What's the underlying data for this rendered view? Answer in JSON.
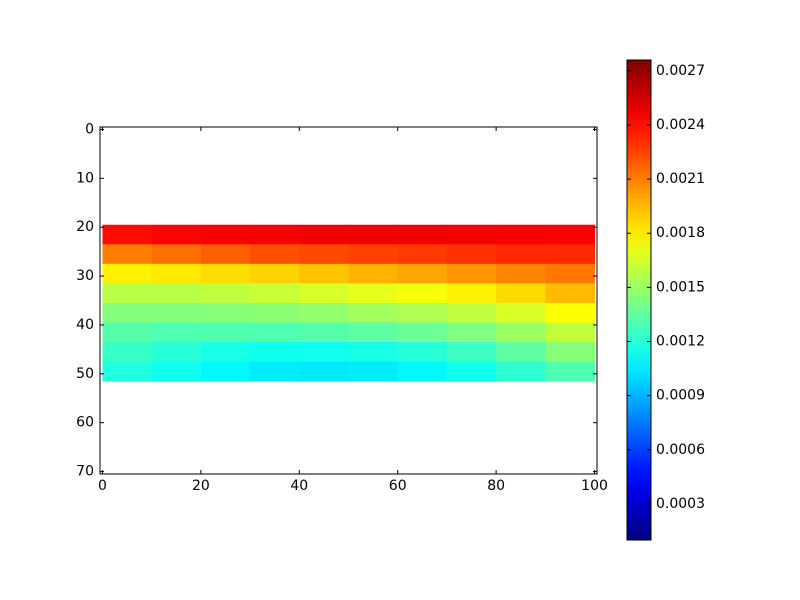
{
  "chart_data": {
    "type": "heatmap",
    "x": [
      5,
      15,
      25,
      35,
      45,
      55,
      65,
      75,
      85,
      95
    ],
    "y": [
      21.5,
      25.5,
      29.5,
      33.5,
      37.5,
      41.5,
      45.5,
      49.5
    ],
    "values": [
      [
        0.0024,
        0.00242,
        0.00244,
        0.00245,
        0.00246,
        0.00246,
        0.00246,
        0.00245,
        0.00244,
        0.00243
      ],
      [
        0.0021,
        0.00214,
        0.00218,
        0.00222,
        0.00224,
        0.00226,
        0.00228,
        0.0023,
        0.00232,
        0.00232
      ],
      [
        0.0018,
        0.00182,
        0.00185,
        0.00188,
        0.00192,
        0.00196,
        0.002,
        0.00204,
        0.00208,
        0.00212
      ],
      [
        0.00158,
        0.00158,
        0.0016,
        0.00162,
        0.00166,
        0.0017,
        0.00174,
        0.0018,
        0.00186,
        0.00194
      ],
      [
        0.00144,
        0.00144,
        0.00145,
        0.00146,
        0.00148,
        0.00152,
        0.00155,
        0.0016,
        0.00166,
        0.00176
      ],
      [
        0.00132,
        0.0013,
        0.0013,
        0.0013,
        0.00132,
        0.00134,
        0.00138,
        0.00143,
        0.0015,
        0.0016
      ],
      [
        0.00124,
        0.0012,
        0.00116,
        0.00114,
        0.00114,
        0.00116,
        0.0012,
        0.00126,
        0.00134,
        0.00145
      ],
      [
        0.00118,
        0.00114,
        0.00108,
        0.00105,
        0.00104,
        0.00105,
        0.00108,
        0.00114,
        0.00122,
        0.0013
      ]
    ],
    "colormap": "jet",
    "xlim": [
      -0.5,
      100.5
    ],
    "xticks": [
      0,
      20,
      40,
      60,
      80,
      100
    ],
    "ylim": [
      -0.5,
      70.5
    ],
    "y_inverted": true,
    "yticks": [
      0,
      10,
      20,
      30,
      40,
      50,
      60,
      70
    ],
    "clim": [
      0.0001,
      0.00276
    ],
    "cticks": [
      0.0003,
      0.0006,
      0.0009,
      0.0012,
      0.0015,
      0.0018,
      0.0021,
      0.0024,
      0.0027
    ]
  }
}
